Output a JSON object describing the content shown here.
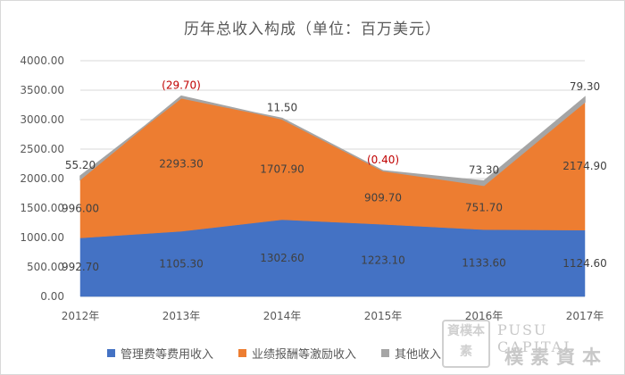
{
  "chart_data": {
    "type": "area",
    "stacked": true,
    "title": "历年总收入构成（单位：百万美元）",
    "categories": [
      "2012年",
      "2013年",
      "2014年",
      "2015年",
      "2016年",
      "2017年"
    ],
    "series": [
      {
        "name": "管理费等费用收入",
        "color": "#4472c4",
        "values": [
          992.7,
          1105.3,
          1302.6,
          1223.1,
          1133.6,
          1124.6
        ],
        "labels": [
          "992.70",
          "1105.30",
          "1302.60",
          "1223.10",
          "1133.60",
          "1124.60"
        ]
      },
      {
        "name": "业绩报酬等激励收入",
        "color": "#ed7d31",
        "values": [
          996.0,
          2293.3,
          1707.9,
          909.7,
          751.7,
          2174.9
        ],
        "labels": [
          "996.00",
          "2293.30",
          "1707.90",
          "909.70",
          "751.70",
          "2174.90"
        ]
      },
      {
        "name": "其他收入",
        "color": "#a5a5a5",
        "values": [
          55.2,
          -29.7,
          11.5,
          -0.4,
          73.3,
          79.3
        ],
        "labels": [
          "55.20",
          "(29.70)",
          "11.50",
          "(0.40)",
          "73.30",
          "79.30"
        ]
      }
    ],
    "ylim": [
      0,
      4000
    ],
    "yticks": [
      "0.00",
      "500.00",
      "1000.00",
      "1500.00",
      "2000.00",
      "2500.00",
      "3000.00",
      "3500.00",
      "4000.00"
    ],
    "grid": true,
    "legend_position": "bottom"
  },
  "watermark": {
    "logo_text": "資樸本素",
    "english": "PUSU CAPITAL",
    "chinese": "樸素資本"
  }
}
